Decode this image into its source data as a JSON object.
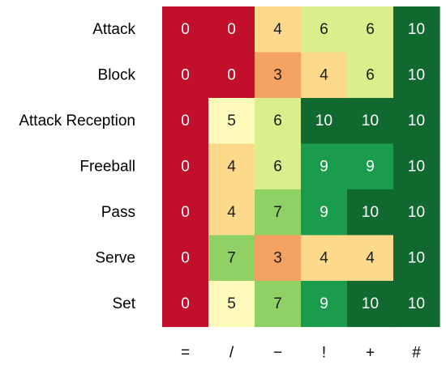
{
  "chart_data": {
    "type": "heatmap",
    "title": "",
    "xlabel": "",
    "ylabel": "",
    "rows": [
      "Attack",
      "Block",
      "Attack Reception",
      "Freeball",
      "Pass",
      "Serve",
      "Set"
    ],
    "columns": [
      "=",
      "/",
      "−",
      "!",
      "+",
      "#"
    ],
    "values": [
      [
        0,
        0,
        4,
        6,
        6,
        10
      ],
      [
        0,
        0,
        3,
        4,
        6,
        10
      ],
      [
        0,
        5,
        6,
        10,
        10,
        10
      ],
      [
        0,
        4,
        6,
        9,
        9,
        10
      ],
      [
        0,
        4,
        7,
        9,
        10,
        10
      ],
      [
        0,
        7,
        3,
        4,
        4,
        10
      ],
      [
        0,
        5,
        7,
        9,
        10,
        10
      ]
    ],
    "value_range": [
      0,
      10
    ],
    "colors": {
      "0": "#c2102c",
      "3": "#f4a261",
      "4": "#fdd98b",
      "5": "#fffcbb",
      "6": "#d9ef8b",
      "7": "#8fd165",
      "9": "#1a9c4c",
      "10": "#106a2f"
    },
    "text_colors": {
      "light": "#ffffff",
      "dark": "#1a1a1a"
    },
    "grid": false,
    "legend": "none"
  }
}
